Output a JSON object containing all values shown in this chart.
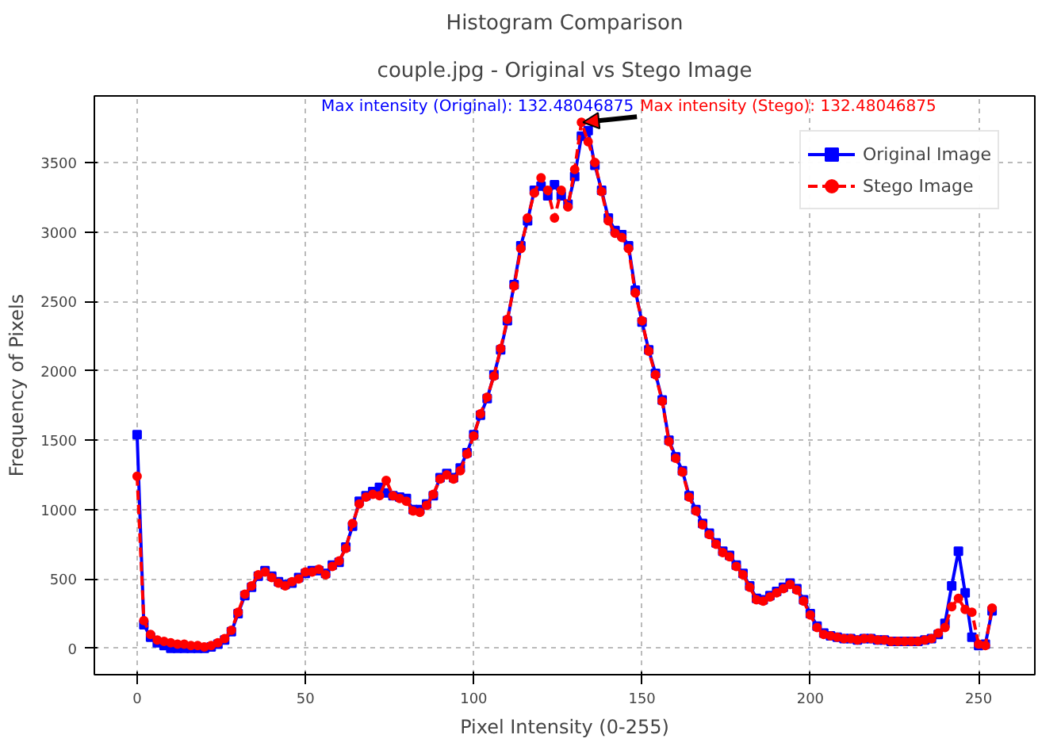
{
  "chart_data": {
    "type": "line",
    "title": "Histogram Comparison",
    "subtitle": "couple.jpg - Original vs Stego Image",
    "xlabel": "Pixel Intensity (0-255)",
    "ylabel": "Frequency of Pixels",
    "x": [
      0,
      2,
      4,
      6,
      8,
      10,
      12,
      14,
      16,
      18,
      20,
      22,
      24,
      26,
      28,
      30,
      32,
      34,
      36,
      38,
      40,
      42,
      44,
      46,
      48,
      50,
      52,
      54,
      56,
      58,
      60,
      62,
      64,
      66,
      68,
      70,
      72,
      74,
      76,
      78,
      80,
      82,
      84,
      86,
      88,
      90,
      92,
      94,
      96,
      98,
      100,
      102,
      104,
      106,
      108,
      110,
      112,
      114,
      116,
      118,
      120,
      122,
      124,
      126,
      128,
      130,
      132,
      134,
      136,
      138,
      140,
      142,
      144,
      146,
      148,
      150,
      152,
      154,
      156,
      158,
      160,
      162,
      164,
      166,
      168,
      170,
      172,
      174,
      176,
      178,
      180,
      182,
      184,
      186,
      188,
      190,
      192,
      194,
      196,
      198,
      200,
      202,
      204,
      206,
      208,
      210,
      212,
      214,
      216,
      218,
      220,
      222,
      224,
      226,
      228,
      230,
      232,
      234,
      236,
      238,
      240,
      242,
      244,
      246,
      248,
      250,
      252,
      254
    ],
    "series": [
      {
        "name": "Original Image",
        "color": "#0000ff",
        "marker": "square",
        "line_style": "solid",
        "values": [
          1540,
          170,
          80,
          40,
          20,
          0,
          0,
          0,
          0,
          0,
          0,
          10,
          30,
          60,
          120,
          250,
          380,
          440,
          520,
          560,
          520,
          480,
          460,
          470,
          510,
          540,
          560,
          560,
          540,
          600,
          620,
          730,
          880,
          1060,
          1100,
          1130,
          1160,
          1120,
          1100,
          1090,
          1080,
          1000,
          1000,
          1040,
          1100,
          1230,
          1260,
          1230,
          1300,
          1410,
          1540,
          1680,
          1800,
          1970,
          2150,
          2360,
          2620,
          2900,
          3080,
          3300,
          3330,
          3260,
          3340,
          3260,
          3200,
          3400,
          3690,
          3730,
          3480,
          3300,
          3100,
          3010,
          2980,
          2900,
          2580,
          2350,
          2150,
          1980,
          1790,
          1500,
          1380,
          1280,
          1100,
          1000,
          900,
          830,
          760,
          700,
          670,
          600,
          540,
          450,
          360,
          350,
          380,
          410,
          440,
          470,
          430,
          350,
          250,
          160,
          110,
          90,
          80,
          70,
          70,
          60,
          70,
          70,
          60,
          60,
          50,
          50,
          50,
          50,
          50,
          60,
          70,
          100,
          180,
          450,
          700,
          400,
          80,
          20,
          30,
          270
        ]
      },
      {
        "name": "Stego Image",
        "color": "#ff0000",
        "marker": "circle",
        "line_style": "dashed",
        "values": [
          1240,
          200,
          100,
          60,
          50,
          40,
          30,
          30,
          20,
          20,
          10,
          20,
          40,
          70,
          130,
          260,
          390,
          450,
          530,
          550,
          510,
          470,
          450,
          480,
          500,
          550,
          550,
          570,
          530,
          590,
          630,
          720,
          900,
          1040,
          1090,
          1110,
          1100,
          1210,
          1100,
          1080,
          1060,
          990,
          980,
          1030,
          1110,
          1220,
          1250,
          1220,
          1280,
          1400,
          1530,
          1690,
          1810,
          1960,
          2160,
          2370,
          2610,
          2880,
          3100,
          3280,
          3390,
          3300,
          3100,
          3300,
          3180,
          3450,
          3790,
          3650,
          3500,
          3290,
          3080,
          2990,
          2960,
          2880,
          2560,
          2360,
          2140,
          1970,
          1780,
          1490,
          1370,
          1270,
          1090,
          990,
          890,
          820,
          750,
          690,
          660,
          590,
          530,
          440,
          350,
          340,
          370,
          400,
          430,
          460,
          420,
          340,
          240,
          150,
          100,
          90,
          80,
          70,
          70,
          60,
          70,
          70,
          60,
          60,
          50,
          50,
          50,
          50,
          50,
          60,
          70,
          110,
          150,
          300,
          360,
          280,
          260,
          30,
          20,
          290
        ]
      }
    ],
    "xlim": [
      -12.7,
      266.7
    ],
    "ylim": [
      -190,
      3980
    ],
    "xticks": [
      0,
      50,
      100,
      150,
      200,
      250
    ],
    "yticks": [
      0,
      500,
      1000,
      1500,
      2000,
      2500,
      3000,
      3500
    ],
    "grid": true,
    "legend": "top right",
    "annotations": [
      {
        "text": "Max intensity (Original): 132.48046875",
        "x": 132.48046875,
        "y": 3790
      },
      {
        "text": "Max intensity (Stego): 132.48046875",
        "x": 132.48046875,
        "y": 3790
      }
    ]
  }
}
